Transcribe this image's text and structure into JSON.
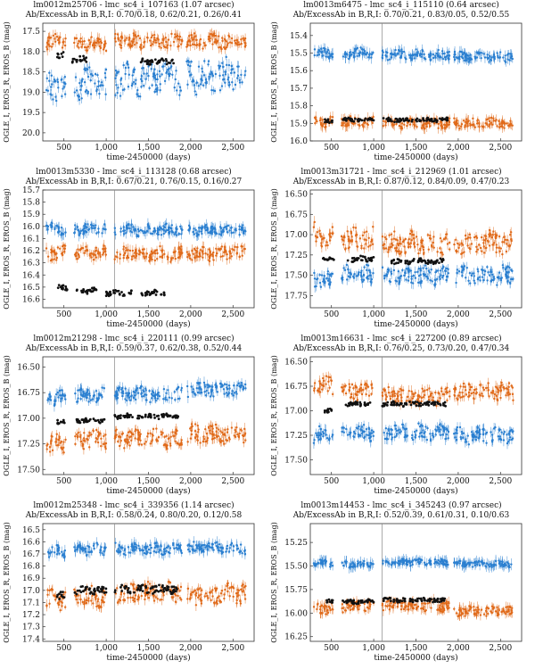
{
  "chart_data": [
    {
      "type": "scatter",
      "title": "lm0012m25706 - lmc_sc4_i_107163 (1.07 arcsec)",
      "subtitle": "Ab/ExcessAb in B,R,I: 0.70/0.18, 0.62/0.21, 0.26/0.41",
      "xlabel": "time-2450000 (days)",
      "ylabel": "OGLE_I, EROS_R, EROS_B (mag)",
      "xlim": [
        250,
        2750
      ],
      "xticks": [
        500,
        1000,
        1500,
        2000,
        2500
      ],
      "xtick_labels": [
        "500",
        "1,000",
        "1,500",
        "2,000",
        "2,500"
      ],
      "ylim": [
        20.2,
        17.3
      ],
      "yticks": [
        17.5,
        18.0,
        18.5,
        19.0,
        19.5,
        20.0
      ],
      "ytick_labels": [
        "17.5",
        "18.0",
        "18.5",
        "19.0",
        "19.5",
        "20.0"
      ],
      "vline_x": 1100,
      "series": [
        {
          "name": "EROS_R",
          "color": "#e06a1a",
          "segments": [
            [
              290,
              520,
              17.75
            ],
            [
              620,
              1000,
              17.8
            ],
            [
              1100,
              1900,
              17.75
            ],
            [
              1950,
              2650,
              17.75
            ]
          ],
          "scatter": 0.15
        },
        {
          "name": "EROS_B",
          "color": "#2a7fd0",
          "segments": [
            [
              290,
              520,
              18.9
            ],
            [
              620,
              1000,
              18.8
            ],
            [
              1100,
              1900,
              18.7
            ],
            [
              1950,
              2650,
              18.6
            ]
          ],
          "scatter": 0.35
        },
        {
          "name": "OGLE_I",
          "color": "#111111",
          "segments": [
            [
              420,
              500,
              18.1
            ],
            [
              600,
              780,
              18.2
            ],
            [
              1400,
              1800,
              18.25
            ]
          ],
          "scatter": 0.07
        }
      ]
    },
    {
      "type": "scatter",
      "title": "lm0013m6475 - lmc_sc4_i_115110 (0.64 arcsec)",
      "subtitle": "Ab/ExcessAb in B,R,I: 0.70/0.21, 0.83/0.05, 0.52/0.55",
      "xlabel": "time-2450000 (days)",
      "ylabel": "OGLE_I, EROS_R, EROS_B (mag)",
      "xlim": [
        250,
        2750
      ],
      "xticks": [
        500,
        1000,
        1500,
        2000,
        2500
      ],
      "xtick_labels": [
        "500",
        "1,000",
        "1,500",
        "2,000",
        "2,500"
      ],
      "ylim": [
        16.0,
        15.33
      ],
      "yticks": [
        15.4,
        15.5,
        15.6,
        15.7,
        15.8,
        15.9,
        16.0
      ],
      "ytick_labels": [
        "15.4",
        "15.5",
        "15.6",
        "15.7",
        "15.8",
        "15.9",
        "16.0"
      ],
      "vline_x": 1100,
      "series": [
        {
          "name": "EROS_B",
          "color": "#2a7fd0",
          "segments": [
            [
              290,
              520,
              15.5
            ],
            [
              620,
              1000,
              15.5
            ],
            [
              1100,
              1900,
              15.51
            ],
            [
              1950,
              2650,
              15.52
            ]
          ],
          "scatter": 0.025
        },
        {
          "name": "EROS_R",
          "color": "#e06a1a",
          "segments": [
            [
              290,
              520,
              15.89
            ],
            [
              620,
              1000,
              15.89
            ],
            [
              1100,
              1900,
              15.9
            ],
            [
              1950,
              2650,
              15.9
            ]
          ],
          "scatter": 0.025
        },
        {
          "name": "OGLE_I",
          "color": "#111111",
          "segments": [
            [
              420,
              520,
              15.89
            ],
            [
              620,
              1000,
              15.88
            ],
            [
              1100,
              1900,
              15.88
            ]
          ],
          "scatter": 0.01
        }
      ]
    },
    {
      "type": "scatter",
      "title": "lm0013m5330 - lmc_sc4_i_113128 (0.68 arcsec)",
      "subtitle": "Ab/ExcessAb in B,R,I: 0.67/0.21, 0.76/0.15, 0.16/0.27",
      "xlabel": "time-2450000 (days)",
      "ylabel": "OGLE_I, EROS_R, EROS_B (mag)",
      "xlim": [
        250,
        2750
      ],
      "xticks": [
        500,
        1000,
        1500,
        2000,
        2500
      ],
      "xtick_labels": [
        "500",
        "1,000",
        "1,500",
        "2,000",
        "2,500"
      ],
      "ylim": [
        16.67,
        15.7
      ],
      "yticks": [
        15.7,
        15.8,
        15.9,
        16.0,
        16.1,
        16.2,
        16.3,
        16.4,
        16.5,
        16.6
      ],
      "ytick_labels": [
        "15.7",
        "15.8",
        "15.9",
        "16.0",
        "16.1",
        "16.2",
        "16.3",
        "16.4",
        "16.5",
        "16.6"
      ],
      "vline_x": 1100,
      "series": [
        {
          "name": "EROS_B",
          "color": "#2a7fd0",
          "segments": [
            [
              290,
              520,
              16.02
            ],
            [
              620,
              1000,
              16.02
            ],
            [
              1100,
              1900,
              16.03
            ],
            [
              1950,
              2650,
              16.03
            ]
          ],
          "scatter": 0.04
        },
        {
          "name": "EROS_R",
          "color": "#e06a1a",
          "segments": [
            [
              290,
              520,
              16.22
            ],
            [
              620,
              1000,
              16.22
            ],
            [
              1100,
              1900,
              16.23
            ],
            [
              1950,
              2650,
              16.22
            ]
          ],
          "scatter": 0.05
        },
        {
          "name": "OGLE_I",
          "color": "#111111",
          "segments": [
            [
              400,
              550,
              16.5
            ],
            [
              650,
              900,
              16.53
            ],
            [
              1000,
              1300,
              16.55
            ],
            [
              1400,
              1700,
              16.55
            ]
          ],
          "scatter": 0.02
        }
      ]
    },
    {
      "type": "scatter",
      "title": "lm0013m31721 - lmc_sc4_i_212969 (1.01 arcsec)",
      "subtitle": "Ab/ExcessAb in B,R,I: 0.87/0.12, 0.84/0.09, 0.47/0.23",
      "xlabel": "time-2450000 (days)",
      "ylabel": "OGLE_I, EROS_R, EROS_B (mag)",
      "xlim": [
        250,
        2750
      ],
      "xticks": [
        500,
        1000,
        1500,
        2000,
        2500
      ],
      "xtick_labels": [
        "500",
        "1,000",
        "1,500",
        "2,000",
        "2,500"
      ],
      "ylim": [
        17.9,
        16.45
      ],
      "yticks": [
        16.5,
        16.75,
        17.0,
        17.25,
        17.5,
        17.75
      ],
      "ytick_labels": [
        "16.50",
        "16.75",
        "17.00",
        "17.25",
        "17.50",
        "17.75"
      ],
      "vline_x": 1100,
      "series": [
        {
          "name": "EROS_R",
          "color": "#e06a1a",
          "segments": [
            [
              290,
              520,
              17.0
            ],
            [
              620,
              1000,
              17.05
            ],
            [
              1100,
              1900,
              17.1
            ],
            [
              1950,
              2650,
              17.1
            ]
          ],
          "scatter": 0.12
        },
        {
          "name": "EROS_B",
          "color": "#2a7fd0",
          "segments": [
            [
              290,
              520,
              17.55
            ],
            [
              620,
              1000,
              17.5
            ],
            [
              1100,
              1900,
              17.5
            ],
            [
              1950,
              2650,
              17.5
            ]
          ],
          "scatter": 0.1
        },
        {
          "name": "OGLE_I",
          "color": "#111111",
          "segments": [
            [
              400,
              550,
              17.28
            ],
            [
              650,
              1000,
              17.3
            ],
            [
              1200,
              1850,
              17.33
            ]
          ],
          "scatter": 0.03
        }
      ]
    },
    {
      "type": "scatter",
      "title": "lm0012m21298 - lmc_sc4_i_220111 (0.99 arcsec)",
      "subtitle": "Ab/ExcessAb in B,R,I: 0.59/0.37, 0.62/0.38, 0.52/0.44",
      "xlabel": "time-2450000 (days)",
      "ylabel": "OGLE_I, EROS_R, EROS_B (mag)",
      "xlim": [
        250,
        2750
      ],
      "xticks": [
        500,
        1000,
        1500,
        2000,
        2500
      ],
      "xtick_labels": [
        "500",
        "1,000",
        "1,500",
        "2,000",
        "2,500"
      ],
      "ylim": [
        17.55,
        16.4
      ],
      "yticks": [
        16.5,
        16.75,
        17.0,
        17.25,
        17.5
      ],
      "ytick_labels": [
        "16.50",
        "16.75",
        "17.00",
        "17.25",
        "17.50"
      ],
      "vline_x": 1100,
      "series": [
        {
          "name": "EROS_B",
          "color": "#2a7fd0",
          "segments": [
            [
              290,
              520,
              16.8
            ],
            [
              620,
              1000,
              16.78
            ],
            [
              1100,
              1900,
              16.77
            ],
            [
              1950,
              2650,
              16.72
            ]
          ],
          "scatter": 0.06
        },
        {
          "name": "EROS_R",
          "color": "#e06a1a",
          "segments": [
            [
              290,
              520,
              17.25
            ],
            [
              620,
              1000,
              17.2
            ],
            [
              1100,
              1900,
              17.2
            ],
            [
              1950,
              2650,
              17.15
            ]
          ],
          "scatter": 0.08
        },
        {
          "name": "OGLE_I",
          "color": "#111111",
          "segments": [
            [
              420,
              520,
              17.03
            ],
            [
              650,
              1000,
              17.02
            ],
            [
              1100,
              1850,
              16.98
            ]
          ],
          "scatter": 0.02
        }
      ]
    },
    {
      "type": "scatter",
      "title": "lm0013m16631 - lmc_sc4_i_227200 (0.89 arcsec)",
      "subtitle": "Ab/ExcessAb in B,R,I: 0.76/0.25, 0.73/0.20, 0.47/0.34",
      "xlabel": "time-2450000 (days)",
      "ylabel": "OGLE_I, EROS_R, EROS_B (mag)",
      "xlim": [
        250,
        2750
      ],
      "xticks": [
        500,
        1000,
        1500,
        2000,
        2500
      ],
      "xtick_labels": [
        "500",
        "1,000",
        "1,500",
        "2,000",
        "2,500"
      ],
      "ylim": [
        17.65,
        16.45
      ],
      "yticks": [
        16.5,
        16.75,
        17.0,
        17.25,
        17.5
      ],
      "ytick_labels": [
        "16.50",
        "16.75",
        "17.00",
        "17.25",
        "17.50"
      ],
      "vline_x": 1100,
      "series": [
        {
          "name": "EROS_R",
          "color": "#e06a1a",
          "segments": [
            [
              290,
              520,
              16.75
            ],
            [
              620,
              1000,
              16.8
            ],
            [
              1100,
              1900,
              16.85
            ],
            [
              1950,
              2650,
              16.8
            ]
          ],
          "scatter": 0.08
        },
        {
          "name": "EROS_B",
          "color": "#2a7fd0",
          "segments": [
            [
              290,
              520,
              17.25
            ],
            [
              620,
              1000,
              17.22
            ],
            [
              1100,
              1900,
              17.22
            ],
            [
              1950,
              2650,
              17.25
            ]
          ],
          "scatter": 0.07
        },
        {
          "name": "OGLE_I",
          "color": "#111111",
          "segments": [
            [
              420,
              520,
              17.0
            ],
            [
              650,
              1000,
              16.93
            ],
            [
              1100,
              1850,
              16.93
            ]
          ],
          "scatter": 0.02
        }
      ]
    },
    {
      "type": "scatter",
      "title": "lm0012m25348 - lmc_sc4_i_339356 (1.14 arcsec)",
      "subtitle": "Ab/ExcessAb in B,R,I: 0.58/0.24, 0.80/0.20, 0.12/0.58",
      "xlabel": "time-2450000 (days)",
      "ylabel": "OGLE_I, EROS_R, EROS_B (mag)",
      "xlim": [
        250,
        2750
      ],
      "xticks": [
        500,
        1000,
        1500,
        2000,
        2500
      ],
      "xtick_labels": [
        "500",
        "1,000",
        "1,500",
        "2,000",
        "2,500"
      ],
      "ylim": [
        17.42,
        16.45
      ],
      "yticks": [
        16.5,
        16.6,
        16.7,
        16.8,
        16.9,
        17.0,
        17.1,
        17.2,
        17.3,
        17.4
      ],
      "ytick_labels": [
        "16.5",
        "16.6",
        "16.7",
        "16.8",
        "16.9",
        "17.0",
        "17.1",
        "17.2",
        "17.3",
        "17.4"
      ],
      "vline_x": 1100,
      "series": [
        {
          "name": "EROS_B",
          "color": "#2a7fd0",
          "segments": [
            [
              290,
              520,
              16.68
            ],
            [
              620,
              1000,
              16.66
            ],
            [
              1100,
              1900,
              16.66
            ],
            [
              1950,
              2650,
              16.65
            ]
          ],
          "scatter": 0.04
        },
        {
          "name": "EROS_R",
          "color": "#e06a1a",
          "segments": [
            [
              290,
              520,
              17.08
            ],
            [
              620,
              1000,
              17.05
            ],
            [
              1100,
              1900,
              17.02
            ],
            [
              1950,
              2650,
              17.03
            ]
          ],
          "scatter": 0.07
        },
        {
          "name": "OGLE_I",
          "color": "#111111",
          "segments": [
            [
              420,
              520,
              17.05
            ],
            [
              620,
              1000,
              17.0
            ],
            [
              1100,
              1850,
              16.99
            ]
          ],
          "scatter": 0.03
        }
      ]
    },
    {
      "type": "scatter",
      "title": "lm0013m14453 - lmc_sc4_i_345243 (0.97 arcsec)",
      "subtitle": "Ab/ExcessAb in B,R,I: 0.52/0.39, 0.61/0.31, 0.10/0.63",
      "xlabel": "time-2450000 (days)",
      "ylabel": "OGLE_I, EROS_R, EROS_B (mag)",
      "xlim": [
        250,
        2750
      ],
      "xticks": [
        500,
        1000,
        1500,
        2000,
        2500
      ],
      "xtick_labels": [
        "500",
        "1,000",
        "1,500",
        "2,000",
        "2,500"
      ],
      "ylim": [
        16.3,
        15.05
      ],
      "yticks": [
        15.25,
        15.5,
        15.75,
        16.0,
        16.25
      ],
      "ytick_labels": [
        "15.25",
        "15.50",
        "15.75",
        "16.00",
        "16.25"
      ],
      "vline_x": 1100,
      "series": [
        {
          "name": "EROS_B",
          "color": "#2a7fd0",
          "segments": [
            [
              290,
              520,
              15.47
            ],
            [
              620,
              1000,
              15.48
            ],
            [
              1100,
              1900,
              15.46
            ],
            [
              1950,
              2650,
              15.48
            ]
          ],
          "scatter": 0.03
        },
        {
          "name": "EROS_R",
          "color": "#e06a1a",
          "segments": [
            [
              290,
              520,
              15.95
            ],
            [
              620,
              1000,
              15.93
            ],
            [
              1100,
              1900,
              15.92
            ],
            [
              1950,
              2650,
              15.98
            ]
          ],
          "scatter": 0.05
        },
        {
          "name": "OGLE_I",
          "color": "#111111",
          "segments": [
            [
              420,
              520,
              15.88
            ],
            [
              620,
              1000,
              15.88
            ],
            [
              1100,
              1850,
              15.86
            ]
          ],
          "scatter": 0.02
        }
      ]
    }
  ]
}
